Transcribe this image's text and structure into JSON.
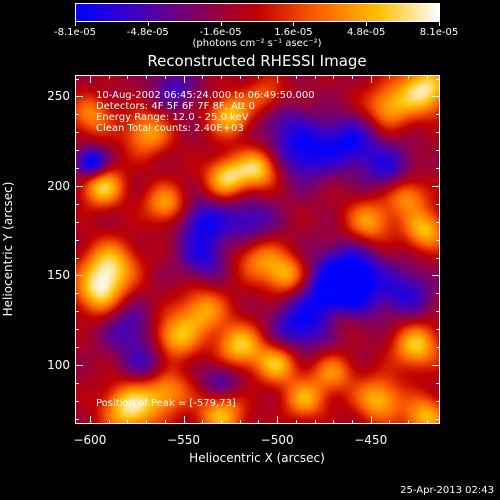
{
  "colorbar": {
    "tick_labels": [
      "-8.1e-05",
      "-4.8e-05",
      "-1.6e-05",
      "1.6e-05",
      "4.8e-05",
      "8.1e-05"
    ],
    "units": "(photons cm⁻² s⁻¹ asec⁻²)",
    "colors": [
      "#0000ff",
      "#4000c0",
      "#800060",
      "#c00000",
      "#ff6000",
      "#ffc000",
      "#ffffff"
    ]
  },
  "annotations": {
    "time_range": "10-Aug-2002 06:45:24.000 to 06:49:50.000",
    "detectors": "Detectors: 4F 5F 6F 7F 8F, Att 0",
    "energy": "Energy Range: 12.0 - 25.0 keV",
    "clean": "Clean       Total counts: 2.40E+03",
    "peak": "Position of Peak = [-579,73]"
  },
  "timestamp": "25-Apr-2013 02:43",
  "chart_data": {
    "type": "heatmap",
    "title": "Reconstructed RHESSI Image",
    "xlabel": "Heliocentric X (arcsec)",
    "ylabel": "Heliocentric Y (arcsec)",
    "xlim": [
      -608,
      -413
    ],
    "ylim": [
      67,
      262
    ],
    "xticks": [
      -600,
      -550,
      -500,
      -450
    ],
    "yticks": [
      100,
      150,
      200,
      250
    ],
    "colorbar_range": [
      -8.1e-05,
      8.1e-05
    ],
    "peak_position": [
      -579,
      73
    ],
    "blobs": [
      {
        "x": -579,
        "y": 75,
        "v": 1.0,
        "r": 10
      },
      {
        "x": -560,
        "y": 85,
        "v": 0.7,
        "r": 9
      },
      {
        "x": -530,
        "y": 72,
        "v": 0.8,
        "r": 9
      },
      {
        "x": -590,
        "y": 155,
        "v": 0.9,
        "r": 10
      },
      {
        "x": -596,
        "y": 140,
        "v": 0.8,
        "r": 9
      },
      {
        "x": -594,
        "y": 200,
        "v": 0.9,
        "r": 8
      },
      {
        "x": -560,
        "y": 190,
        "v": 0.7,
        "r": 8
      },
      {
        "x": -527,
        "y": 205,
        "v": 0.9,
        "r": 8
      },
      {
        "x": -510,
        "y": 210,
        "v": 0.9,
        "r": 8
      },
      {
        "x": -525,
        "y": 240,
        "v": 0.85,
        "r": 8
      },
      {
        "x": -505,
        "y": 250,
        "v": 0.6,
        "r": 8
      },
      {
        "x": -420,
        "y": 255,
        "v": 1.0,
        "r": 10
      },
      {
        "x": -440,
        "y": 245,
        "v": 0.7,
        "r": 9
      },
      {
        "x": -510,
        "y": 160,
        "v": 0.6,
        "r": 9
      },
      {
        "x": -495,
        "y": 150,
        "v": 0.8,
        "r": 8
      },
      {
        "x": -450,
        "y": 180,
        "v": 0.7,
        "r": 9
      },
      {
        "x": -420,
        "y": 175,
        "v": 0.8,
        "r": 8
      },
      {
        "x": -430,
        "y": 195,
        "v": 0.7,
        "r": 8
      },
      {
        "x": -540,
        "y": 130,
        "v": 0.7,
        "r": 9
      },
      {
        "x": -555,
        "y": 115,
        "v": 0.8,
        "r": 9
      },
      {
        "x": -520,
        "y": 110,
        "v": 0.85,
        "r": 9
      },
      {
        "x": -500,
        "y": 100,
        "v": 0.8,
        "r": 8
      },
      {
        "x": -485,
        "y": 80,
        "v": 0.7,
        "r": 8
      },
      {
        "x": -470,
        "y": 95,
        "v": 0.6,
        "r": 8
      },
      {
        "x": -445,
        "y": 80,
        "v": 0.8,
        "r": 9
      },
      {
        "x": -420,
        "y": 70,
        "v": 0.8,
        "r": 8
      },
      {
        "x": -425,
        "y": 110,
        "v": 0.85,
        "r": 9
      },
      {
        "x": -465,
        "y": 125,
        "v": 0.5,
        "r": 8
      },
      {
        "x": -570,
        "y": 230,
        "v": 0.7,
        "r": 9
      },
      {
        "x": -600,
        "y": 240,
        "v": 0.6,
        "r": 8
      },
      {
        "x": -470,
        "y": 135,
        "v": -0.8,
        "r": 14
      },
      {
        "x": -460,
        "y": 150,
        "v": -0.9,
        "r": 12
      },
      {
        "x": -485,
        "y": 220,
        "v": -0.8,
        "r": 12
      },
      {
        "x": -460,
        "y": 225,
        "v": -0.7,
        "r": 10
      },
      {
        "x": -600,
        "y": 213,
        "v": -1.0,
        "r": 6
      },
      {
        "x": -540,
        "y": 180,
        "v": -0.7,
        "r": 9
      },
      {
        "x": -515,
        "y": 180,
        "v": -0.6,
        "r": 10
      },
      {
        "x": -540,
        "y": 160,
        "v": -0.6,
        "r": 9
      },
      {
        "x": -490,
        "y": 120,
        "v": -0.6,
        "r": 10
      },
      {
        "x": -580,
        "y": 120,
        "v": -0.5,
        "r": 10
      },
      {
        "x": -570,
        "y": 100,
        "v": -0.5,
        "r": 9
      },
      {
        "x": -530,
        "y": 90,
        "v": -0.5,
        "r": 8
      },
      {
        "x": -440,
        "y": 210,
        "v": -0.6,
        "r": 10
      },
      {
        "x": -430,
        "y": 140,
        "v": -0.6,
        "r": 10
      },
      {
        "x": -500,
        "y": 240,
        "v": -0.4,
        "r": 10
      },
      {
        "x": -555,
        "y": 255,
        "v": -0.5,
        "r": 9
      }
    ]
  }
}
